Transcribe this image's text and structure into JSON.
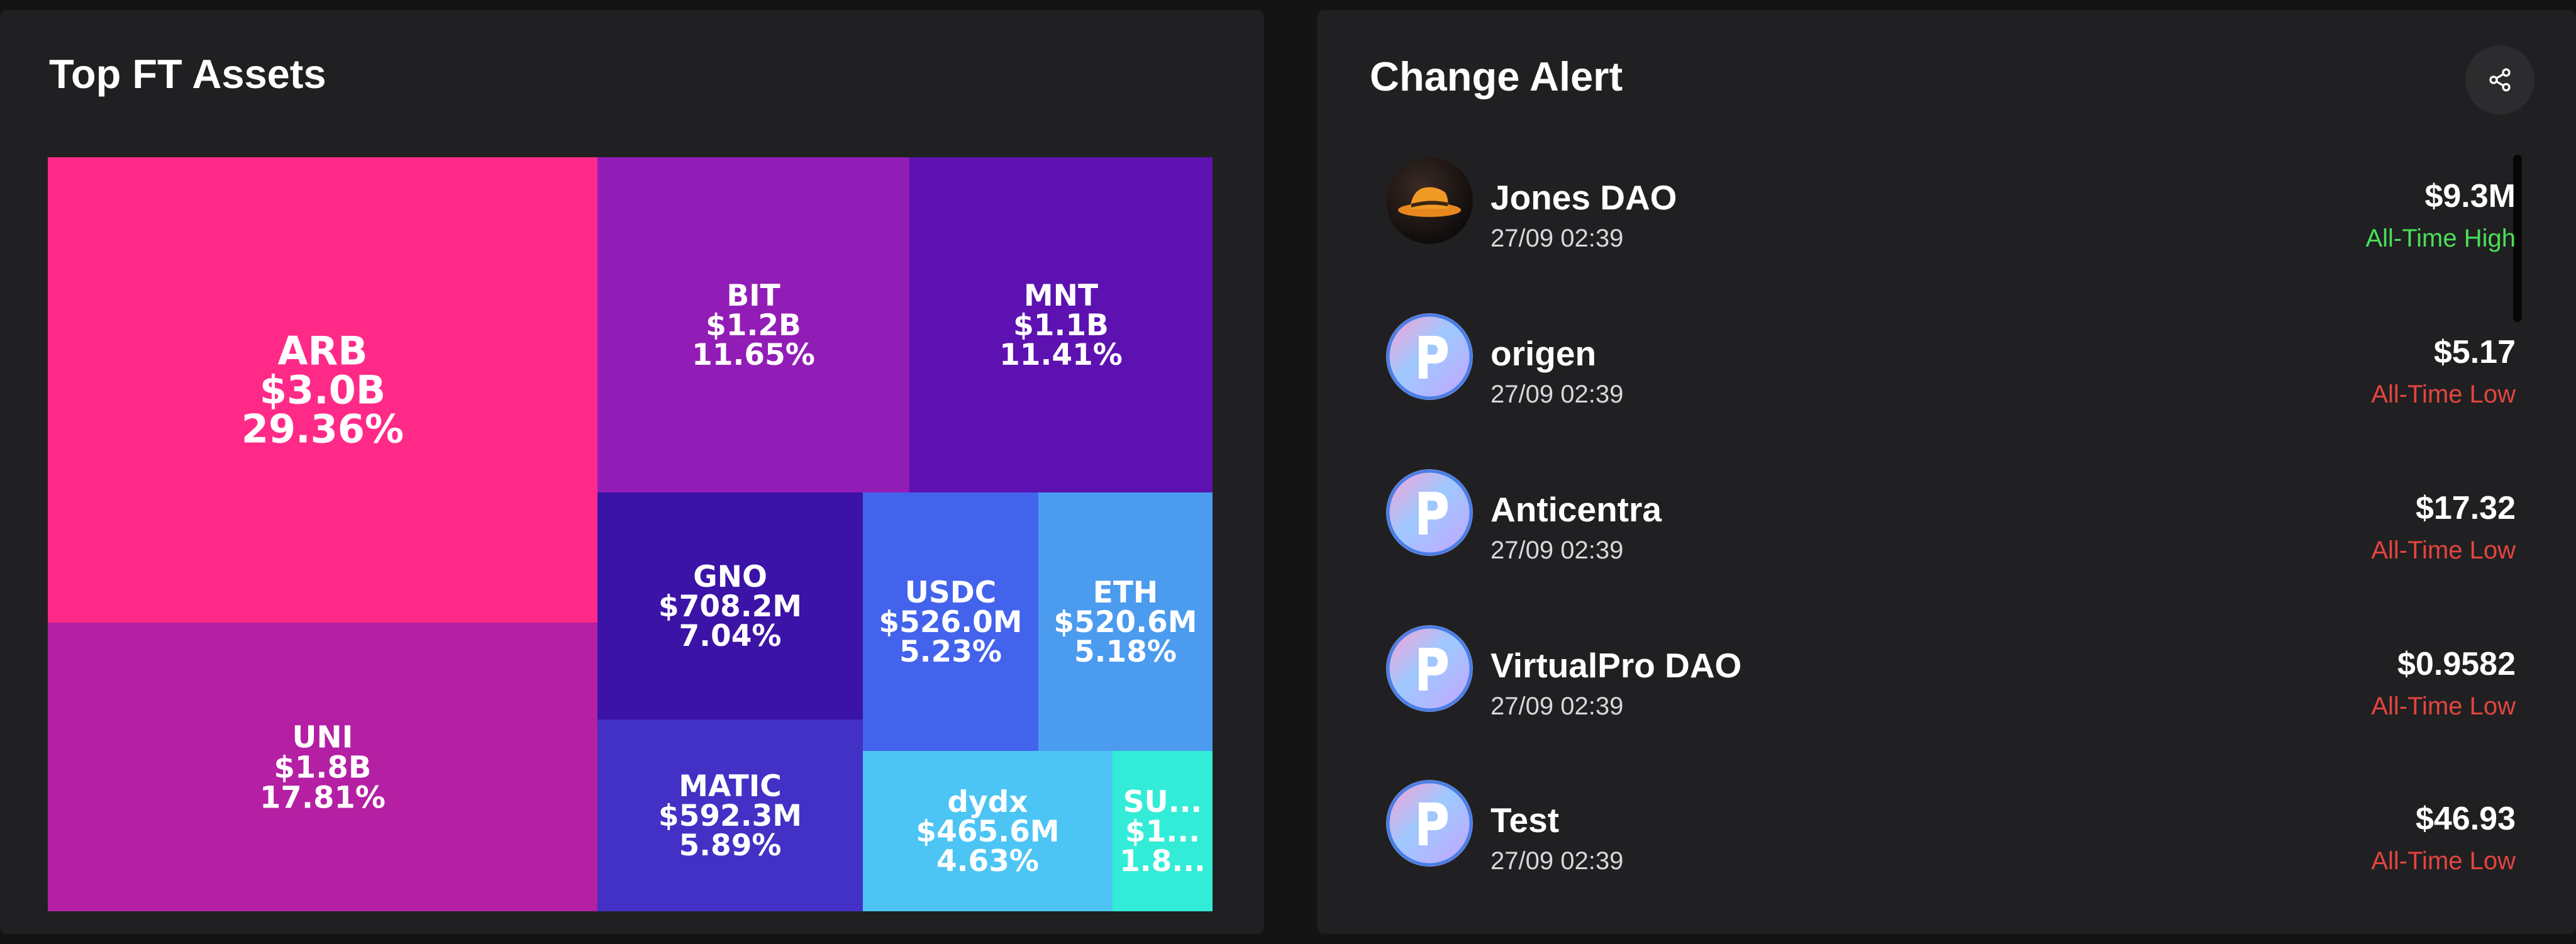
{
  "left_panel": {
    "title": "Top FT Assets"
  },
  "treemap": {
    "tiles": [
      {
        "symbol": "ARB",
        "value": "$3.0B",
        "share": "29.36%",
        "color": "#ff2a88"
      },
      {
        "symbol": "UNI",
        "value": "$1.8B",
        "share": "17.81%",
        "color": "#b41fa4"
      },
      {
        "symbol": "BIT",
        "value": "$1.2B",
        "share": "11.65%",
        "color": "#921db6"
      },
      {
        "symbol": "MNT",
        "value": "$1.1B",
        "share": "11.41%",
        "color": "#5c11b0"
      },
      {
        "symbol": "GNO",
        "value": "$708.2M",
        "share": "7.04%",
        "color": "#3b13a6"
      },
      {
        "symbol": "USDC",
        "value": "$526.0M",
        "share": "5.23%",
        "color": "#4363ec"
      },
      {
        "symbol": "ETH",
        "value": "$520.6M",
        "share": "5.18%",
        "color": "#4b9bef"
      },
      {
        "symbol": "MATIC",
        "value": "$592.3M",
        "share": "5.89%",
        "color": "#4231c4"
      },
      {
        "symbol": "dydx",
        "value": "$465.6M",
        "share": "4.63%",
        "color": "#4cc5f4"
      },
      {
        "symbol": "SU...",
        "value": "$1...",
        "share": "1.8...",
        "color": "#33ecd8"
      }
    ]
  },
  "right_panel": {
    "title": "Change Alert",
    "share_icon": "share-icon"
  },
  "alerts": [
    {
      "name": "Jones DAO",
      "time": "27/09 02:39",
      "price": "$9.3M",
      "status": "All-Time High",
      "status_color": "#49e05a",
      "avatar": "jones-dao-hat-logo"
    },
    {
      "name": "origen",
      "time": "27/09 02:39",
      "price": "$5.17",
      "status": "All-Time Low",
      "status_color": "#e5443f",
      "avatar": "p-letter-logo"
    },
    {
      "name": "Anticentra",
      "time": "27/09 02:39",
      "price": "$17.32",
      "status": "All-Time Low",
      "status_color": "#e5443f",
      "avatar": "p-letter-logo"
    },
    {
      "name": "VirtualPro DAO",
      "time": "27/09 02:39",
      "price": "$0.9582",
      "status": "All-Time Low",
      "status_color": "#e5443f",
      "avatar": "p-letter-logo"
    },
    {
      "name": "Test",
      "time": "27/09 02:39",
      "price": "$46.93",
      "status": "All-Time Low",
      "status_color": "#e5443f",
      "avatar": "p-letter-logo"
    }
  ]
}
